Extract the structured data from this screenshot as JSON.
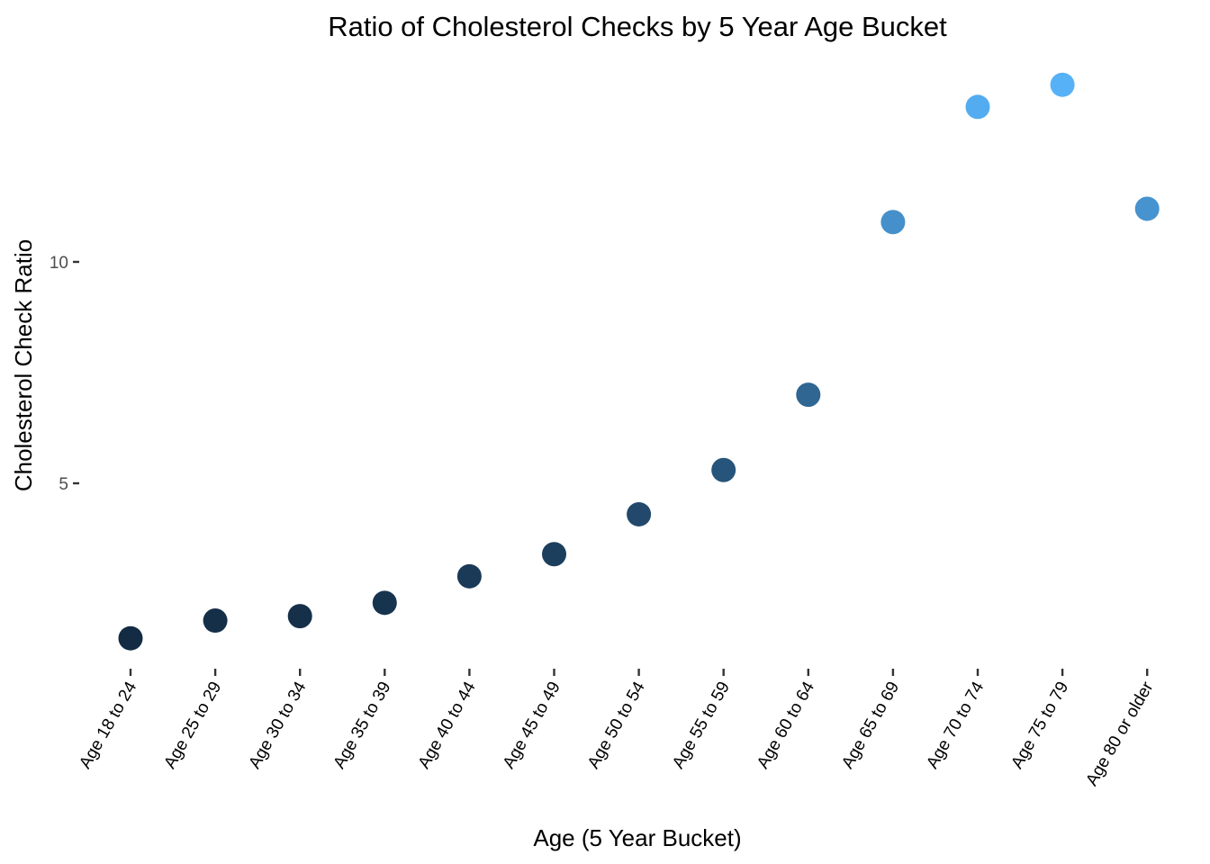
{
  "chart_data": {
    "type": "scatter",
    "title": "Ratio of Cholesterol Checks by 5 Year Age Bucket",
    "xlabel": "Age (5 Year Bucket)",
    "ylabel": "Cholesterol Check Ratio",
    "categories": [
      "Age 18 to 24",
      "Age 25 to 29",
      "Age 30 to 34",
      "Age 35 to 39",
      "Age 40 to 44",
      "Age 45 to 49",
      "Age 50 to 54",
      "Age 55 to 59",
      "Age 60 to 64",
      "Age 65 to 69",
      "Age 70 to 74",
      "Age 75 to 79",
      "Age 80 or older"
    ],
    "values": [
      1.5,
      1.9,
      2.0,
      2.3,
      2.9,
      3.4,
      4.3,
      5.3,
      7.0,
      10.9,
      13.5,
      14.0,
      11.2
    ],
    "y_ticks": [
      5,
      10
    ],
    "ylim": [
      1.0,
      14.5
    ],
    "grid": false,
    "legend": "none",
    "color_scale": {
      "low": "#132B43",
      "high": "#56B1F7"
    }
  }
}
